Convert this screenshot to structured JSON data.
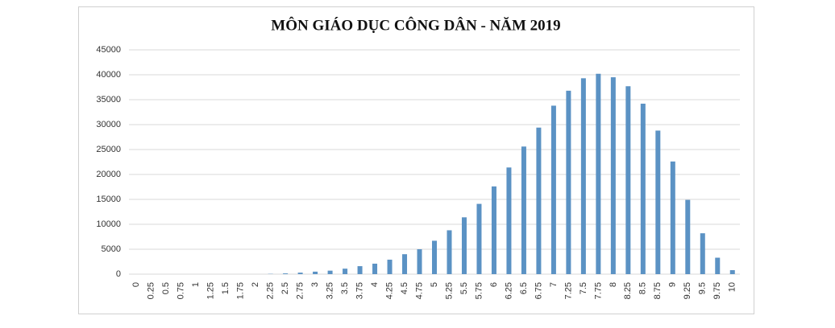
{
  "chart_data": {
    "type": "bar",
    "title": "MÔN GIÁO DỤC CÔNG DÂN - NĂM 2019",
    "categories": [
      "0",
      "0.25",
      "0.5",
      "0.75",
      "1",
      "1.25",
      "1.5",
      "1.75",
      "2",
      "2.25",
      "2.5",
      "2.75",
      "3",
      "3.25",
      "3.5",
      "3.75",
      "4",
      "4.25",
      "4.5",
      "4.75",
      "5",
      "5.25",
      "5.5",
      "5.75",
      "6",
      "6.25",
      "6.5",
      "6.75",
      "7",
      "7.25",
      "7.5",
      "7.75",
      "8",
      "8.25",
      "8.5",
      "8.75",
      "9",
      "9.25",
      "9.5",
      "9.75",
      "10"
    ],
    "values": [
      0,
      0,
      0,
      0,
      0,
      0,
      0,
      0,
      0,
      50,
      150,
      300,
      500,
      700,
      1100,
      1600,
      2100,
      2900,
      4000,
      5000,
      6700,
      8800,
      11400,
      14100,
      17600,
      21400,
      25600,
      29400,
      33800,
      36800,
      39300,
      40200,
      39500,
      37700,
      34200,
      28800,
      22600,
      14900,
      8200,
      3300,
      800
    ],
    "color": "#5b92c4",
    "ylim": [
      0,
      45000
    ],
    "yticks": [
      0,
      5000,
      10000,
      15000,
      20000,
      25000,
      30000,
      35000,
      40000,
      45000
    ],
    "grid": true
  }
}
